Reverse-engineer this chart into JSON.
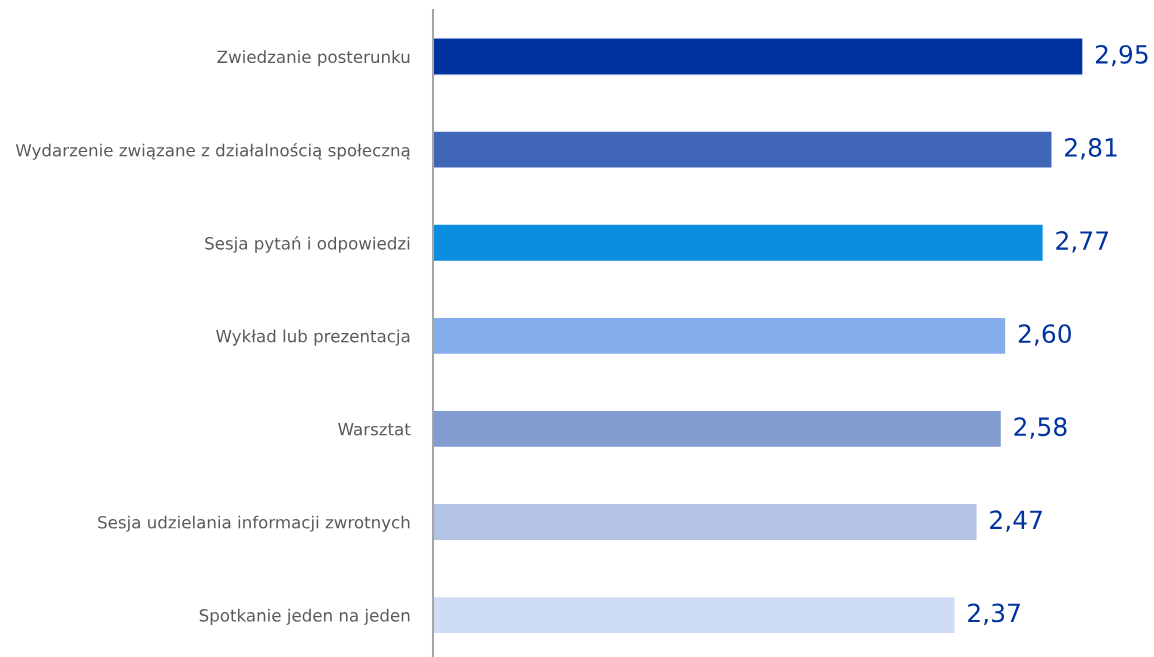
{
  "chart_data": {
    "type": "bar",
    "orientation": "horizontal",
    "categories": [
      "Zwiedzanie posterunku",
      "Wydarzenie związane z działalnością społeczną",
      "Sesja pytań i odpowiedzi",
      "Wykład lub prezentacja",
      "Warsztat",
      "Sesja udzielania informacji zwrotnych",
      "Spotkanie jeden na jeden"
    ],
    "values": [
      2.95,
      2.81,
      2.77,
      2.6,
      2.58,
      2.47,
      2.37
    ],
    "colors": [
      "#0033a0",
      "#4066b8",
      "#0a8fe0",
      "#86adeb",
      "#829bd0",
      "#b3c3e5",
      "#cfdcf5"
    ],
    "value_labels": [
      "2,95",
      "2,81",
      "2,77",
      "2,60",
      "2,58",
      "2,47",
      "2,37"
    ],
    "tick_labels": "y",
    "grid": false,
    "legend": false
  }
}
